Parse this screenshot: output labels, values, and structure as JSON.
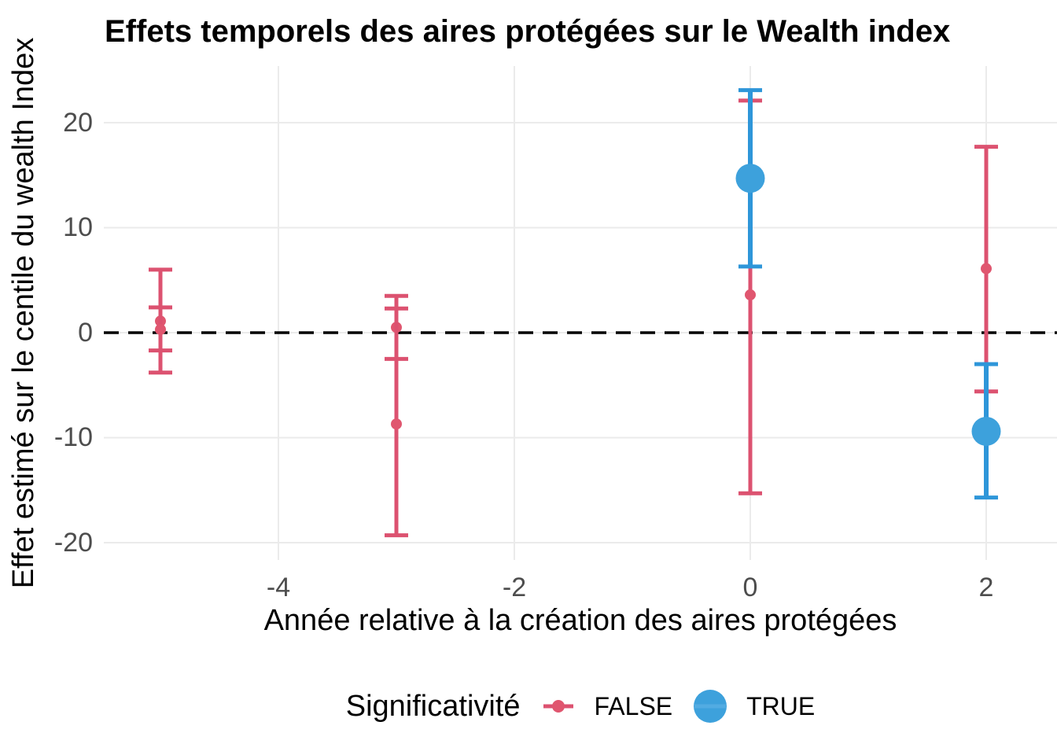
{
  "title": "Effets temporels des aires protégées sur le Wealth index",
  "axes": {
    "x_label": "Année relative à la création des aires protégées",
    "y_label": "Effet estimé sur le centile du wealth Index"
  },
  "legend": {
    "title": "Significativité",
    "items": [
      {
        "label": "FALSE",
        "significant": false
      },
      {
        "label": "TRUE",
        "significant": true
      }
    ]
  },
  "colors": {
    "false_line": "#DC5270",
    "false_point": "#E0566F",
    "true_line": "#2E96D9",
    "true_point": "#3DA1DC",
    "true_stripe": "#52ACE2",
    "grid": "#EBEBEB",
    "zero_line": "#000000",
    "tick_text": "#4d4d4d"
  },
  "chart_data": {
    "type": "pointrange",
    "title": "Effets temporels des aires protégées sur le Wealth index",
    "xlabel": "Année relative à la création des aires protégées",
    "ylabel": "Effet estimé sur le centile du wealth Index",
    "legend_position": "bottom",
    "grid": "major-only",
    "xlim": [
      -5.48,
      2.6
    ],
    "ylim": [
      -21.65,
      25.39
    ],
    "x_ticks": [
      -4,
      -2,
      0,
      2
    ],
    "y_ticks": [
      -20,
      -10,
      0,
      10,
      20
    ],
    "reference_line": {
      "y": 0,
      "style": "dashed",
      "color": "#000000"
    },
    "series": [
      {
        "x": -5,
        "estimate": 1.1,
        "lo": -3.8,
        "hi": 6.0,
        "significant": false
      },
      {
        "x": -5,
        "estimate": 0.3,
        "lo": -1.7,
        "hi": 2.4,
        "significant": false
      },
      {
        "x": -3,
        "estimate": 0.5,
        "lo": -2.5,
        "hi": 3.5,
        "significant": false
      },
      {
        "x": -3,
        "estimate": -8.7,
        "lo": -19.3,
        "hi": 2.3,
        "significant": false
      },
      {
        "x": 0,
        "estimate": 3.6,
        "lo": -15.3,
        "hi": 22.1,
        "significant": false
      },
      {
        "x": 2,
        "estimate": 6.1,
        "lo": -5.6,
        "hi": 17.7,
        "significant": false
      },
      {
        "x": 0,
        "estimate": 14.7,
        "lo": 6.3,
        "hi": 23.1,
        "significant": true
      },
      {
        "x": 2,
        "estimate": -9.4,
        "lo": -15.7,
        "hi": -3.0,
        "significant": true
      }
    ]
  }
}
